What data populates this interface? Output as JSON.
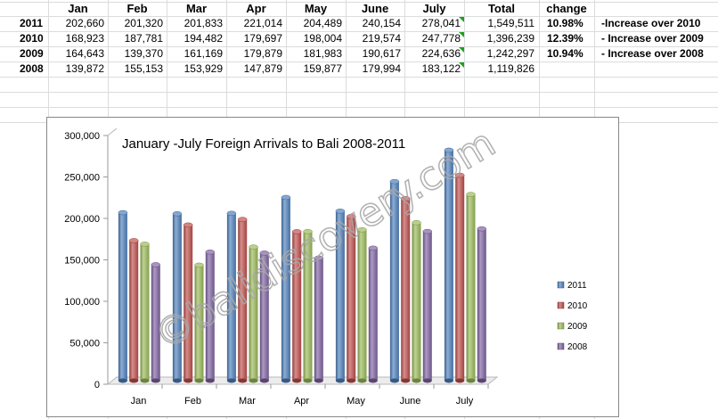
{
  "spreadsheet": {
    "headers": [
      "Jan",
      "Feb",
      "Mar",
      "Apr",
      "May",
      "June",
      "July",
      "Total",
      "change"
    ],
    "rows": [
      {
        "year": "2011",
        "values": [
          "202,660",
          "201,320",
          "201,833",
          "221,014",
          "204,489",
          "240,154",
          "278,041"
        ],
        "total": "1,549,511",
        "change": "10.98%",
        "note": "-Increase over 2010"
      },
      {
        "year": "2010",
        "values": [
          "168,923",
          "187,781",
          "194,482",
          "179,697",
          "198,004",
          "219,574",
          "247,778"
        ],
        "total": "1,396,239",
        "change": "12.39%",
        "note": "- Increase over 2009"
      },
      {
        "year": "2009",
        "values": [
          "164,643",
          "139,370",
          "161,169",
          "179,879",
          "181,983",
          "190,617",
          "224,636"
        ],
        "total": "1,242,297",
        "change": "10.94%",
        "note": "- Increase over 2008"
      },
      {
        "year": "2008",
        "values": [
          "139,872",
          "155,153",
          "153,929",
          "147,879",
          "159,877",
          "179,994",
          "183,122"
        ],
        "total": "1,119,826",
        "change": "",
        "note": ""
      }
    ]
  },
  "watermark": "©balidiscovery.com",
  "chart_data": {
    "type": "bar",
    "title": "January -July Foreign Arrivals to Bali 2008-2011",
    "xlabel": "",
    "ylabel": "",
    "categories": [
      "Jan",
      "Feb",
      "Mar",
      "Apr",
      "May",
      "June",
      "July"
    ],
    "series": [
      {
        "name": "2011",
        "values": [
          202660,
          201320,
          201833,
          221014,
          204489,
          240154,
          278041
        ],
        "color": "#4f81bd"
      },
      {
        "name": "2010",
        "values": [
          168923,
          187781,
          194482,
          179697,
          198004,
          219574,
          247778
        ],
        "color": "#c0504d"
      },
      {
        "name": "2009",
        "values": [
          164643,
          139370,
          161169,
          179879,
          181983,
          190617,
          224636
        ],
        "color": "#9bbb59"
      },
      {
        "name": "2008",
        "values": [
          139872,
          155153,
          153929,
          147879,
          159877,
          179994,
          183122
        ],
        "color": "#8064a2"
      }
    ],
    "ylim": [
      0,
      300000
    ],
    "yticks": [
      "0",
      "50,000",
      "100,000",
      "150,000",
      "200,000",
      "250,000",
      "300,000"
    ],
    "yticks_values": [
      0,
      50000,
      100000,
      150000,
      200000,
      250000,
      300000
    ],
    "legend_position": "right",
    "grid": false,
    "style": "3d-cylinder"
  }
}
